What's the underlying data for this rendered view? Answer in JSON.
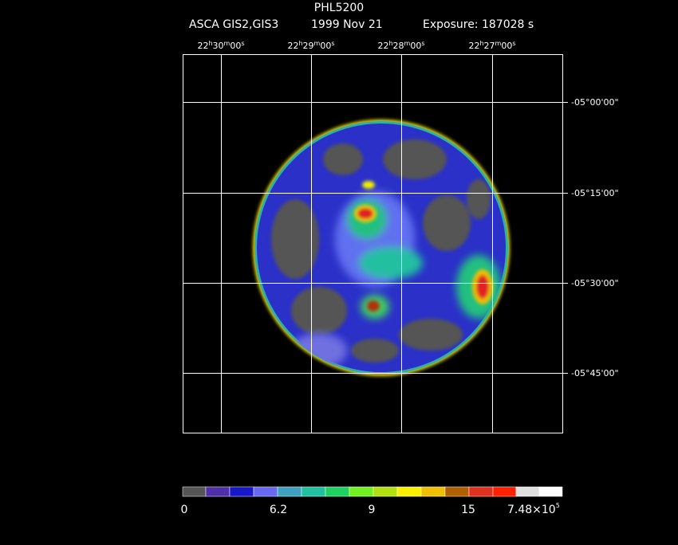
{
  "header": {
    "title": "PHL5200",
    "instrument": "ASCA GIS2,GIS3",
    "date": "1999 Nov 21",
    "exposure": "Exposure: 187028 s"
  },
  "ra_labels": [
    [
      "22",
      "h",
      "30",
      "m",
      "00",
      "s"
    ],
    [
      "22",
      "h",
      "29",
      "m",
      "00",
      "s"
    ],
    [
      "22",
      "h",
      "28",
      "m",
      "00",
      "s"
    ],
    [
      "22",
      "h",
      "27",
      "m",
      "00",
      "s"
    ]
  ],
  "dec_labels": [
    "-05°00'00\"",
    "-05°15'00\"",
    "-05°30'00\"",
    "-05°45'00\""
  ],
  "colorbar": {
    "labels": [
      "0",
      "6.2",
      "9",
      "15"
    ],
    "max_label": [
      "7.48×10",
      "5"
    ]
  }
}
